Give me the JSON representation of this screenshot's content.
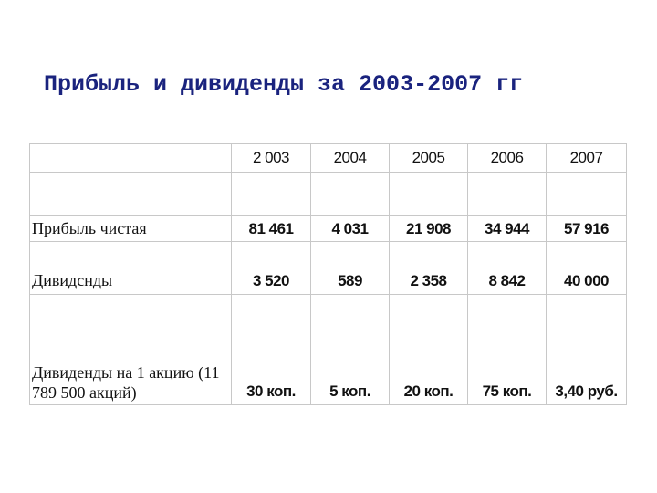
{
  "title": "Прибыль и дивиденды за 2003-2007 гг",
  "table": {
    "years": [
      "2 003",
      "2004",
      "2005",
      "2006",
      "2007"
    ],
    "rows": [
      {
        "label": "Прибыль чистая",
        "values": [
          "81 461",
          "4 031",
          "21 908",
          "34 944",
          "57 916"
        ]
      },
      {
        "label": "Дивидснды",
        "values": [
          "3 520",
          "589",
          "2 358",
          "8 842",
          "40 000"
        ]
      },
      {
        "label": "Дивиденды на 1 акцию (11 789 500 акций)",
        "values": [
          "30 коп.",
          "5 коп.",
          "20 коп.",
          "75 коп.",
          "3,40 руб."
        ]
      }
    ]
  }
}
